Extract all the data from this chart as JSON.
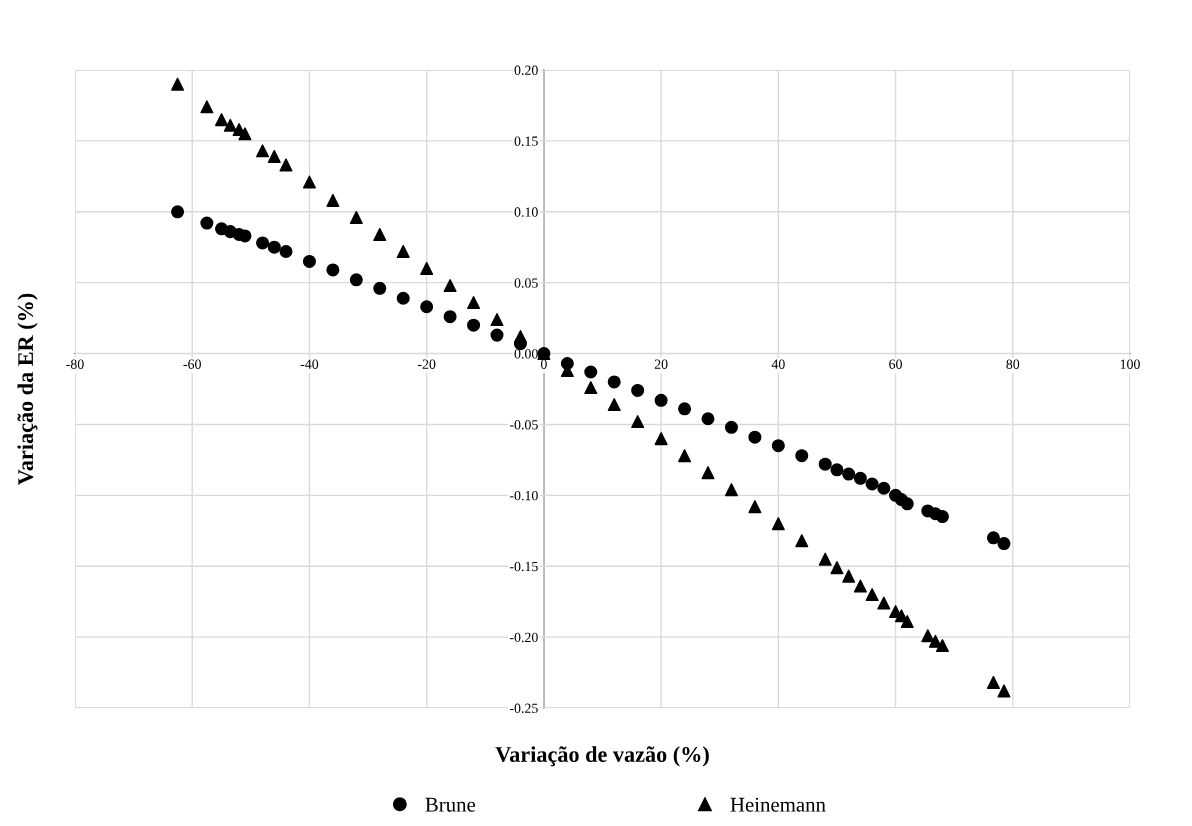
{
  "chart_data": {
    "type": "scatter",
    "xlabel": "Variação de vazão (%)",
    "ylabel": "Variação da ER (%)",
    "xlim": [
      -80,
      100
    ],
    "xticks": [
      -80,
      -60,
      -40,
      -20,
      0,
      20,
      40,
      60,
      80,
      100
    ],
    "ylim": [
      -0.25,
      0.2
    ],
    "yticks": [
      {
        "value": -0.25,
        "label": "-0.25"
      },
      {
        "value": -0.2,
        "label": "-0.20"
      },
      {
        "value": -0.15,
        "label": "-0.15"
      },
      {
        "value": -0.1,
        "label": "-0.10"
      },
      {
        "value": -0.05,
        "label": "-0.05"
      },
      {
        "value": 0,
        "label": "0.00"
      },
      {
        "value": 0.05,
        "label": "0.05"
      },
      {
        "value": 0.1,
        "label": "0.10"
      },
      {
        "value": 0.15,
        "label": "0.15"
      },
      {
        "value": 0.2,
        "label": "0.20"
      }
    ],
    "grid": true,
    "legend": "bottom",
    "series": [
      {
        "name": "Brune",
        "color": "#000000",
        "marker": "circle",
        "x": [
          -62.5,
          -57.5,
          -55,
          -53.5,
          -52,
          -51,
          -48,
          -46,
          -44,
          -40,
          -36,
          -32,
          -28,
          -24,
          -20,
          -16,
          -12,
          -8,
          -4,
          0,
          4,
          8,
          12,
          16,
          20,
          24,
          28,
          32,
          36,
          40,
          44,
          48,
          50,
          52,
          54,
          56,
          58,
          60,
          61,
          62,
          65.5,
          66.8,
          68,
          76.7,
          78.5
        ],
        "values": [
          0.1,
          0.092,
          0.088,
          0.086,
          0.084,
          0.083,
          0.078,
          0.075,
          0.072,
          0.065,
          0.059,
          0.052,
          0.046,
          0.039,
          0.033,
          0.026,
          0.02,
          0.013,
          0.007,
          0.0,
          -0.007,
          -0.013,
          -0.02,
          -0.026,
          -0.033,
          -0.039,
          -0.046,
          -0.052,
          -0.059,
          -0.065,
          -0.072,
          -0.078,
          -0.082,
          -0.085,
          -0.088,
          -0.092,
          -0.095,
          -0.1,
          -0.103,
          -0.106,
          -0.111,
          -0.113,
          -0.115,
          -0.13,
          -0.134
        ]
      },
      {
        "name": "Heinemann",
        "color": "#000000",
        "marker": "triangle",
        "x": [
          -62.5,
          -57.5,
          -55,
          -53.5,
          -52,
          -51,
          -48,
          -46,
          -44,
          -40,
          -36,
          -32,
          -28,
          -24,
          -20,
          -16,
          -12,
          -8,
          -4,
          0,
          4,
          8,
          12,
          16,
          20,
          24,
          28,
          32,
          36,
          40,
          44,
          48,
          50,
          52,
          54,
          56,
          58,
          60,
          61,
          62,
          65.5,
          66.8,
          68,
          76.7,
          78.5
        ],
        "values": [
          0.19,
          0.174,
          0.165,
          0.161,
          0.158,
          0.155,
          0.143,
          0.139,
          0.133,
          0.121,
          0.108,
          0.096,
          0.084,
          0.072,
          0.06,
          0.048,
          0.036,
          0.024,
          0.012,
          0.0,
          -0.012,
          -0.024,
          -0.036,
          -0.048,
          -0.06,
          -0.072,
          -0.084,
          -0.096,
          -0.108,
          -0.12,
          -0.132,
          -0.145,
          -0.151,
          -0.157,
          -0.164,
          -0.17,
          -0.176,
          -0.182,
          -0.185,
          -0.189,
          -0.199,
          -0.203,
          -0.206,
          -0.232,
          -0.238
        ]
      }
    ]
  }
}
